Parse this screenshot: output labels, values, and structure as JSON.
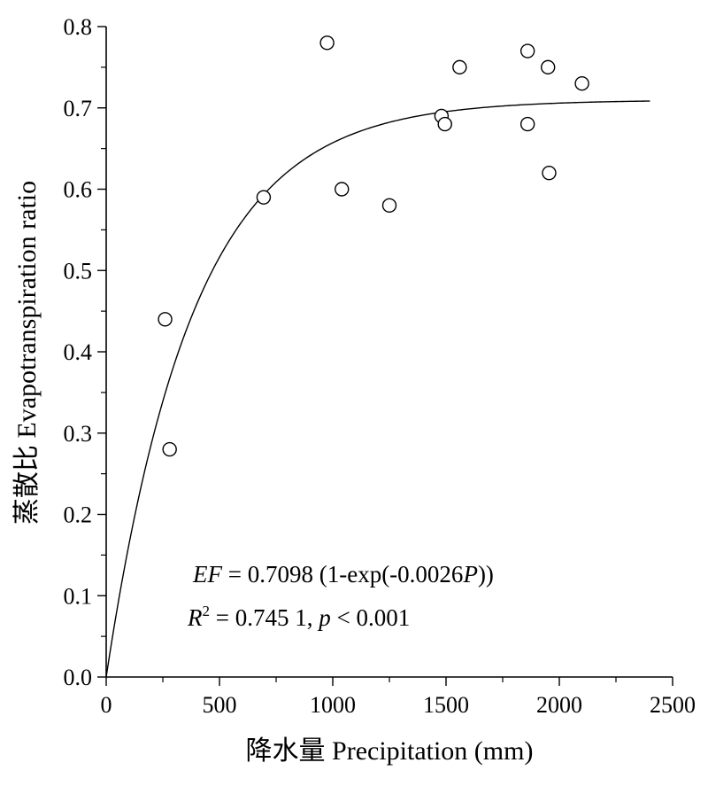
{
  "chart_data": {
    "type": "scatter",
    "xlabel": "降水量 Precipitation (mm)",
    "ylabel": "蒸散比 Evapotranspiration ratio",
    "xlim": [
      0,
      2500
    ],
    "ylim": [
      0.0,
      0.8
    ],
    "x_ticks": [
      0,
      500,
      1000,
      1500,
      2000,
      2500
    ],
    "y_ticks": [
      0.0,
      0.1,
      0.2,
      0.3,
      0.4,
      0.5,
      0.6,
      0.7,
      0.8
    ],
    "y_tick_labels": [
      "0.0",
      "0.1",
      "0.2",
      "0.3",
      "0.4",
      "0.5",
      "0.6",
      "0.7",
      "0.8"
    ],
    "grid": false,
    "points": [
      {
        "x": 260,
        "y": 0.44
      },
      {
        "x": 280,
        "y": 0.28
      },
      {
        "x": 695,
        "y": 0.59
      },
      {
        "x": 975,
        "y": 0.78
      },
      {
        "x": 1040,
        "y": 0.6
      },
      {
        "x": 1250,
        "y": 0.58
      },
      {
        "x": 1480,
        "y": 0.69
      },
      {
        "x": 1495,
        "y": 0.68
      },
      {
        "x": 1560,
        "y": 0.75
      },
      {
        "x": 1860,
        "y": 0.77
      },
      {
        "x": 1860,
        "y": 0.68
      },
      {
        "x": 1950,
        "y": 0.75
      },
      {
        "x": 1955,
        "y": 0.62
      },
      {
        "x": 2100,
        "y": 0.73
      }
    ],
    "fit": {
      "a": 0.7098,
      "b": 0.0026,
      "x_range": [
        0,
        2400
      ]
    },
    "annotation": {
      "eq_lhs": "EF",
      "eq_rhs_pre": " = 0.7098 (1-exp(-0.0026",
      "eq_var": "P",
      "eq_rhs_post": "))",
      "r_sym": "R",
      "r_sup": "2",
      "r_rest": " = 0.745 1, ",
      "p_sym": "p",
      "p_rest": " < 0.001"
    }
  }
}
